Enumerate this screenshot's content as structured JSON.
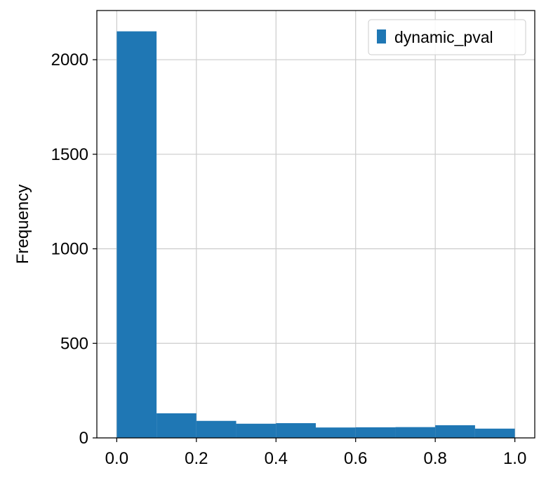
{
  "chart_data": {
    "type": "bar",
    "subtype": "histogram",
    "bin_edges": [
      0.0,
      0.1,
      0.2,
      0.3,
      0.4,
      0.5,
      0.6,
      0.7,
      0.8,
      0.9,
      1.0
    ],
    "series": [
      {
        "name": "dynamic_pval",
        "color": "#1f77b4",
        "values": [
          2150,
          130,
          90,
          75,
          78,
          55,
          56,
          57,
          67,
          49
        ]
      }
    ],
    "xlabel": "",
    "ylabel": "Frequency",
    "xlim": [
      -0.05,
      1.05
    ],
    "ylim": [
      0,
      2260
    ],
    "xticks": [
      0.0,
      0.2,
      0.4,
      0.6,
      0.8,
      1.0
    ],
    "xtick_labels": [
      "0.0",
      "0.2",
      "0.4",
      "0.6",
      "0.8",
      "1.0"
    ],
    "yticks": [
      0,
      500,
      1000,
      1500,
      2000
    ],
    "ytick_labels": [
      "0",
      "500",
      "1000",
      "1500",
      "2000"
    ],
    "grid": true,
    "legend_position": "top-right"
  }
}
